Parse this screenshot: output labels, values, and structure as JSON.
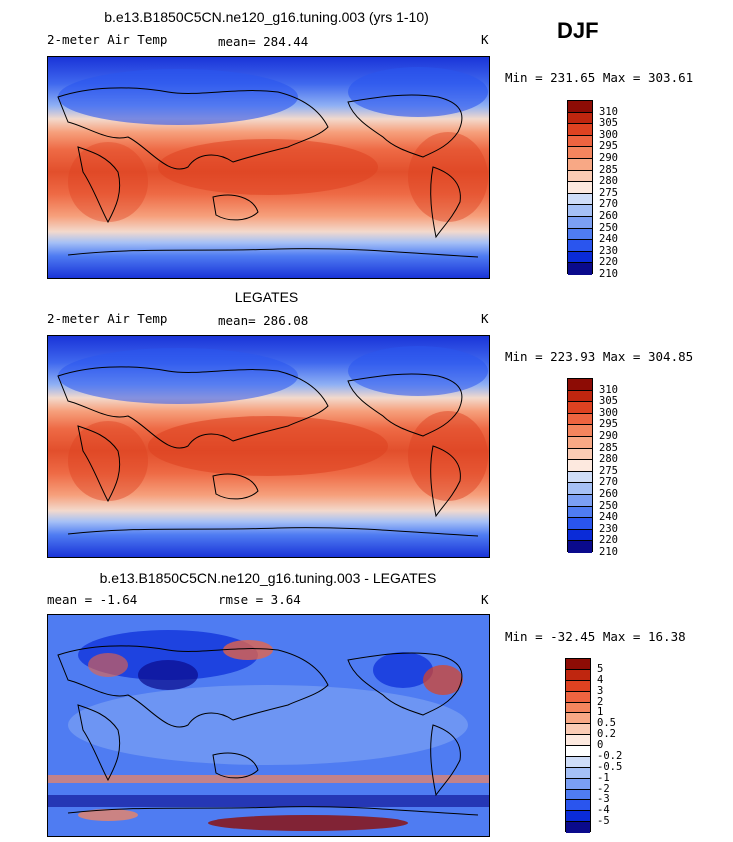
{
  "season": "DJF",
  "palettes": {
    "temp": [
      "#0a0a8c",
      "#0a2bd8",
      "#2a55ee",
      "#4f7cf2",
      "#7b9ff4",
      "#a5c0f6",
      "#cfddf8",
      "#fde9df",
      "#fbcbb4",
      "#f8a885",
      "#f4855e",
      "#ee6440",
      "#de4221",
      "#bf260f",
      "#8d0c05"
    ],
    "diff": [
      "#0a0a8c",
      "#0a2bd8",
      "#2a55ee",
      "#4f7cf2",
      "#7b9ff4",
      "#a5c0f6",
      "#cfddf8",
      "#ffffff",
      "#fde9df",
      "#fbcbb4",
      "#f8a885",
      "#f4855e",
      "#ee6440",
      "#de4221",
      "#bf260f",
      "#8d0c05"
    ]
  },
  "panels": [
    {
      "id": "model",
      "title": "b.e13.B1850C5CN.ne120_g16.tuning.003 (yrs 1-10)",
      "left_label": "2-meter Air Temp",
      "center_label": "mean=  284.44",
      "right_label": "K",
      "minmax": "Min = 231.65 Max = 303.61",
      "colorbar_labels": [
        "310",
        "305",
        "300",
        "295",
        "290",
        "285",
        "280",
        "275",
        "270",
        "260",
        "250",
        "240",
        "230",
        "220",
        "210"
      ],
      "palette": "temp"
    },
    {
      "id": "obs",
      "title": "LEGATES",
      "left_label": "2-meter Air Temp",
      "center_label": "mean=  286.08",
      "right_label": "K",
      "minmax": "Min = 223.93 Max = 304.85",
      "colorbar_labels": [
        "310",
        "305",
        "300",
        "295",
        "290",
        "285",
        "280",
        "275",
        "270",
        "260",
        "250",
        "240",
        "230",
        "220",
        "210"
      ],
      "palette": "temp"
    },
    {
      "id": "diff",
      "title": "b.e13.B1850C5CN.ne120_g16.tuning.003 - LEGATES",
      "left_label": "mean =   -1.64",
      "center_label": "rmse =    3.64",
      "right_label": "K",
      "minmax": "Min = -32.45 Max =  16.38",
      "colorbar_labels": [
        "5",
        "4",
        "3",
        "2",
        "1",
        "0.5",
        "0.2",
        "0",
        "-0.2",
        "-0.5",
        "-1",
        "-2",
        "-3",
        "-4",
        "-5"
      ],
      "palette": "diff"
    }
  ],
  "chart_data": [
    {
      "type": "heatmap",
      "title": "b.e13.B1850C5CN.ne120_g16.tuning.003 (yrs 1-10)",
      "variable": "2-meter Air Temp",
      "units": "K",
      "mean": 284.44,
      "min": 231.65,
      "max": 303.61,
      "levels": [
        210,
        220,
        230,
        240,
        250,
        260,
        270,
        275,
        280,
        285,
        290,
        295,
        300,
        305,
        310
      ]
    },
    {
      "type": "heatmap",
      "title": "LEGATES",
      "variable": "2-meter Air Temp",
      "units": "K",
      "mean": 286.08,
      "min": 223.93,
      "max": 304.85,
      "levels": [
        210,
        220,
        230,
        240,
        250,
        260,
        270,
        275,
        280,
        285,
        290,
        295,
        300,
        305,
        310
      ]
    },
    {
      "type": "heatmap",
      "title": "b.e13.B1850C5CN.ne120_g16.tuning.003 - LEGATES",
      "units": "K",
      "mean": -1.64,
      "rmse": 3.64,
      "min": -32.45,
      "max": 16.38,
      "levels": [
        -5,
        -4,
        -3,
        -2,
        -1,
        -0.5,
        -0.2,
        0,
        0.2,
        0.5,
        1,
        2,
        3,
        4,
        5
      ]
    }
  ]
}
